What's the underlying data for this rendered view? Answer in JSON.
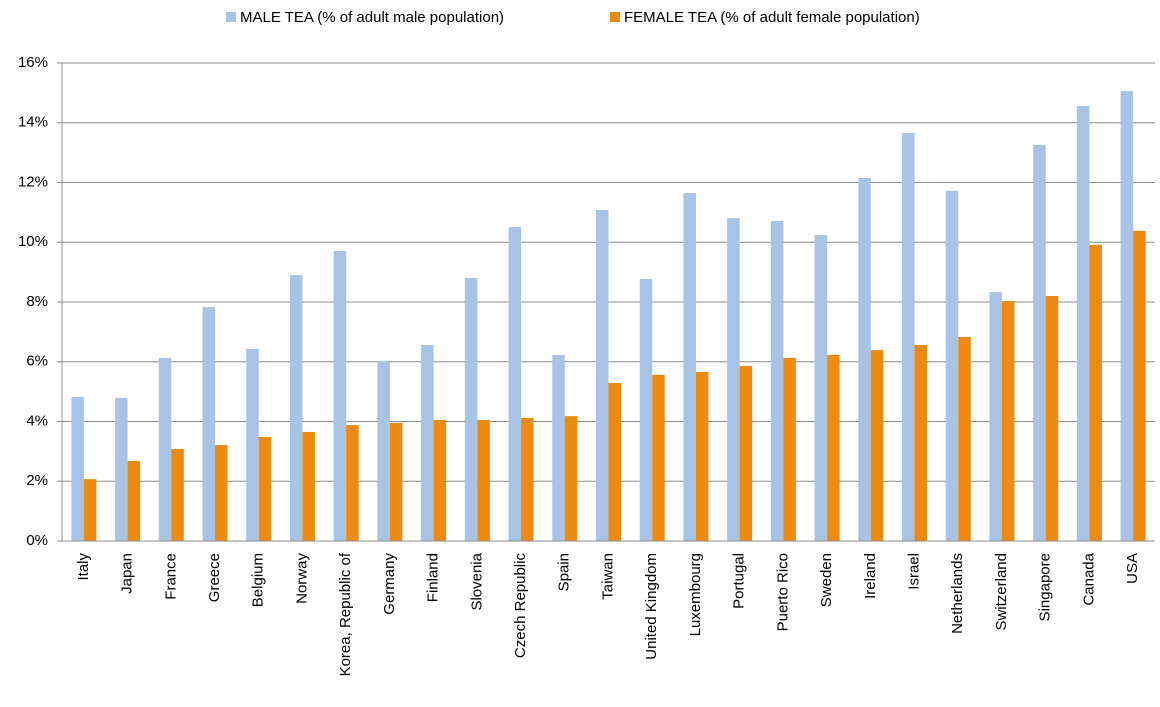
{
  "chart_data": {
    "type": "bar",
    "categories": [
      "Italy",
      "Japan",
      "France",
      "Greece",
      "Belgium",
      "Norway",
      "Korea, Republic of",
      "Germany",
      "Finland",
      "Slovenia",
      "Czech Republic",
      "Spain",
      "Taiwan",
      "United Kingdom",
      "Luxembourg",
      "Portugal",
      "Puerto Rico",
      "Sweden",
      "Ireland",
      "Israel",
      "Netherlands",
      "Switzerland",
      "Singapore",
      "Canada",
      "USA"
    ],
    "series": [
      {
        "name": "MALE TEA (% of adult male population)",
        "color": "#a7c3e6",
        "values": [
          4.82,
          4.79,
          6.13,
          7.83,
          6.43,
          8.9,
          9.71,
          6.03,
          6.56,
          8.8,
          10.51,
          6.23,
          11.08,
          8.77,
          11.65,
          10.81,
          10.71,
          10.24,
          12.15,
          13.66,
          11.72,
          8.33,
          13.26,
          14.56,
          15.06
        ]
      },
      {
        "name": "FEMALE TEA (% of adult female population)",
        "color": "#ee8a0e",
        "values": [
          2.07,
          2.68,
          3.08,
          3.21,
          3.48,
          3.65,
          3.88,
          3.95,
          4.05,
          4.05,
          4.12,
          4.18,
          5.29,
          5.56,
          5.66,
          5.86,
          6.13,
          6.23,
          6.39,
          6.56,
          6.83,
          8.03,
          8.2,
          9.91,
          10.38
        ]
      }
    ],
    "ylim": [
      0,
      16
    ],
    "yticks": [
      {
        "value": 0,
        "label": "0%"
      },
      {
        "value": 2,
        "label": "2%"
      },
      {
        "value": 4,
        "label": "4%"
      },
      {
        "value": 6,
        "label": "6%"
      },
      {
        "value": 8,
        "label": "8%"
      },
      {
        "value": 10,
        "label": "10%"
      },
      {
        "value": 12,
        "label": "12%"
      },
      {
        "value": 14,
        "label": "14%"
      },
      {
        "value": 16,
        "label": "16%"
      }
    ],
    "grid": true,
    "legend": "top"
  }
}
